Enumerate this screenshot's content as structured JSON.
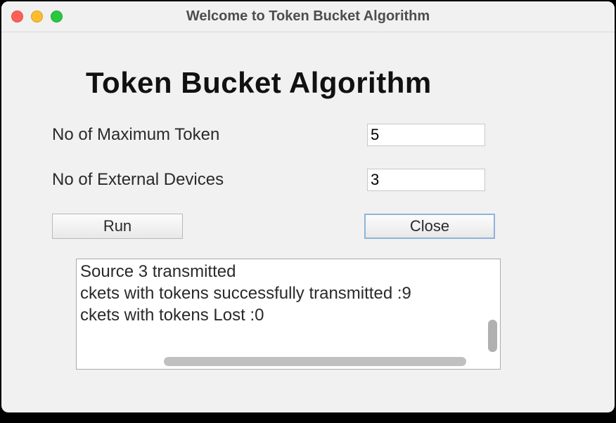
{
  "window": {
    "title": "Welcome to Token Bucket Algorithm"
  },
  "heading": "Token Bucket Algorithm",
  "form": {
    "max_token_label": "No of Maximum Token",
    "max_token_value": "5",
    "external_devices_label": "No of External Devices",
    "external_devices_value": "3"
  },
  "buttons": {
    "run_label": "Run",
    "close_label": "Close"
  },
  "output": {
    "lines": [
      "Source 3 transmitted",
      "ckets with tokens successfully transmitted :9",
      "ckets with tokens Lost :0"
    ],
    "joined": "Source 3 transmitted\nckets with tokens successfully transmitted :9\nckets with tokens Lost :0"
  },
  "colors": {
    "window_bg": "#f1f1f1",
    "text": "#2a2a2a",
    "input_border": "#c8c8c8",
    "output_border": "#aaaaaa",
    "scrollbar": "#b0b0b0",
    "close_btn_ring": "#8fb3d9"
  }
}
